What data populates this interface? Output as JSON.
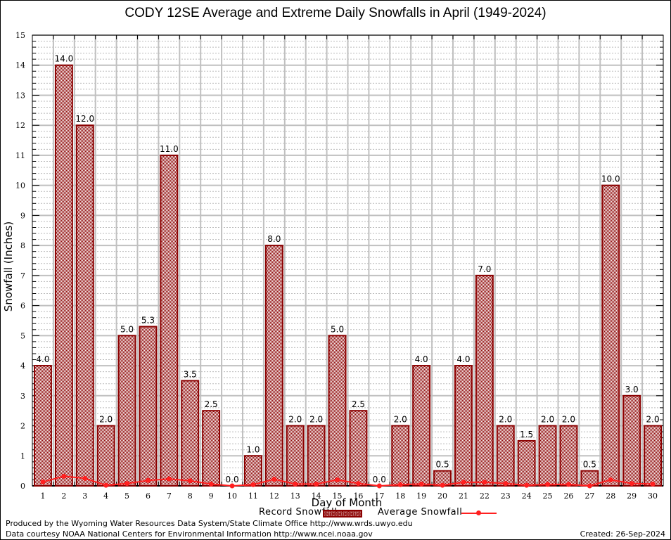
{
  "chart_data": {
    "type": "bar",
    "title": "CODY 12SE Average and Extreme Daily Snowfalls in April (1949-2024)",
    "xlabel": "Day of Month",
    "ylabel": "Snowfall (Inches)",
    "ylim": [
      0,
      15
    ],
    "yticks": [
      0,
      1,
      2,
      3,
      4,
      5,
      6,
      7,
      8,
      9,
      10,
      11,
      12,
      13,
      14,
      15
    ],
    "grid": true,
    "categories": [
      "1",
      "2",
      "3",
      "4",
      "5",
      "6",
      "7",
      "8",
      "9",
      "10",
      "11",
      "12",
      "13",
      "14",
      "15",
      "16",
      "17",
      "18",
      "19",
      "20",
      "21",
      "22",
      "23",
      "24",
      "25",
      "26",
      "27",
      "28",
      "29",
      "30"
    ],
    "series": [
      {
        "name": "Record Snowfall",
        "kind": "bar",
        "color": "#8b0000",
        "values": [
          4.0,
          14.0,
          12.0,
          2.0,
          5.0,
          5.3,
          11.0,
          3.5,
          2.5,
          0.0,
          1.0,
          8.0,
          2.0,
          2.0,
          5.0,
          2.5,
          0.0,
          2.0,
          4.0,
          0.5,
          4.0,
          7.0,
          2.0,
          1.5,
          2.0,
          2.0,
          0.5,
          10.0,
          3.0,
          2.0
        ],
        "labels": [
          "4.0",
          "14.0",
          "12.0",
          "2.0",
          "5.0",
          "5.3",
          "11.0",
          "3.5",
          "2.5",
          "0.0",
          "1.0",
          "8.0",
          "2.0",
          "2.0",
          "5.0",
          "2.5",
          "0.0",
          "2.0",
          "4.0",
          "0.5",
          "4.0",
          "7.0",
          "2.0",
          "1.5",
          "2.0",
          "2.0",
          "0.5",
          "10.0",
          "3.0",
          "2.0"
        ]
      },
      {
        "name": "Average Snowfall",
        "kind": "line",
        "color": "#ff2020",
        "values": [
          0.13,
          0.32,
          0.25,
          0.02,
          0.08,
          0.18,
          0.23,
          0.17,
          0.06,
          0.0,
          0.04,
          0.22,
          0.06,
          0.06,
          0.2,
          0.08,
          0.0,
          0.04,
          0.06,
          0.02,
          0.12,
          0.12,
          0.08,
          0.02,
          0.05,
          0.05,
          0.0,
          0.2,
          0.08,
          0.06
        ]
      }
    ],
    "legend": {
      "placement": "bottom-center",
      "entries": [
        "Record Snowfall",
        "Average Snowfall"
      ]
    }
  },
  "footer": {
    "produced_by": "Produced by the Wyoming Water Resources Data System/State Climate Office http://www.wrds.uwyo.edu",
    "data_courtesy": "Data courtesy NOAA National Centers for Environmental Information http://www.ncei.noaa.gov",
    "created": "Created:  26-Sep-2024"
  }
}
